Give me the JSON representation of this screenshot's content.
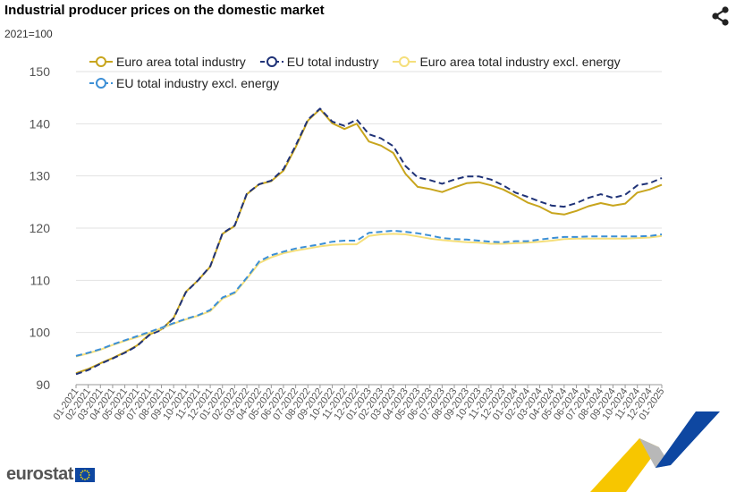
{
  "title": "Industrial producer prices on the domestic market",
  "subtitle": "2021=100",
  "logo_text": "eurostat",
  "share_icon": "share-icon",
  "chart_data": {
    "type": "line",
    "ylim": [
      90,
      150
    ],
    "yticks": [
      90,
      100,
      110,
      120,
      130,
      140,
      150
    ],
    "grid": true,
    "legend_position": "top",
    "categories": [
      "01-2021",
      "02-2021",
      "03-2021",
      "04-2021",
      "05-2021",
      "06-2021",
      "07-2021",
      "08-2021",
      "09-2021",
      "10-2021",
      "11-2021",
      "12-2021",
      "01-2022",
      "02-2022",
      "03-2022",
      "04-2022",
      "05-2022",
      "06-2022",
      "07-2022",
      "08-2022",
      "09-2022",
      "10-2022",
      "11-2022",
      "12-2022",
      "01-2023",
      "02-2023",
      "03-2023",
      "04-2023",
      "05-2023",
      "06-2023",
      "07-2023",
      "08-2023",
      "09-2023",
      "10-2023",
      "11-2023",
      "12-2023",
      "01-2024",
      "02-2024",
      "03-2024",
      "04-2024",
      "05-2024",
      "06-2024",
      "07-2024",
      "08-2024",
      "09-2024",
      "10-2024",
      "11-2024",
      "12-2024",
      "01-2025"
    ],
    "series": [
      {
        "name": "Euro area total industry",
        "color": "#c8a51d",
        "dash": false,
        "values": [
          92.2,
          93.0,
          94.1,
          95.1,
          96.2,
          97.5,
          99.6,
          100.6,
          102.8,
          107.8,
          110.0,
          112.6,
          118.9,
          120.4,
          126.5,
          128.4,
          129.0,
          131.0,
          135.5,
          140.6,
          142.8,
          140.1,
          139.0,
          140.0,
          136.6,
          135.8,
          134.4,
          130.4,
          127.9,
          127.5,
          126.9,
          127.8,
          128.6,
          128.8,
          128.2,
          127.4,
          126.2,
          124.9,
          124.1,
          122.9,
          122.6,
          123.3,
          124.2,
          124.8,
          124.3,
          124.7,
          126.8,
          127.4,
          128.3
        ]
      },
      {
        "name": "EU total industry",
        "color": "#1f3277",
        "dash": true,
        "values": [
          92.0,
          92.8,
          94.0,
          95.0,
          96.1,
          97.4,
          99.5,
          100.5,
          102.7,
          107.7,
          110.0,
          112.7,
          119.0,
          120.5,
          126.6,
          128.4,
          129.1,
          131.3,
          135.8,
          140.8,
          142.9,
          140.4,
          139.6,
          140.8,
          138.0,
          137.2,
          135.7,
          131.9,
          129.7,
          129.2,
          128.5,
          129.3,
          129.9,
          129.9,
          129.3,
          128.2,
          126.8,
          126.0,
          125.1,
          124.3,
          124.1,
          124.8,
          125.8,
          126.5,
          125.8,
          126.4,
          128.2,
          128.6,
          129.6
        ]
      },
      {
        "name": "Euro area total industry excl. energy",
        "color": "#f5df7b",
        "dash": false,
        "values": [
          95.4,
          96.0,
          96.7,
          97.6,
          98.4,
          99.1,
          99.9,
          100.8,
          101.7,
          102.5,
          103.2,
          104.1,
          106.5,
          107.5,
          110.3,
          113.3,
          114.4,
          115.2,
          115.7,
          116.1,
          116.5,
          116.8,
          116.9,
          116.9,
          118.5,
          118.8,
          118.9,
          118.8,
          118.4,
          118.0,
          117.7,
          117.5,
          117.3,
          117.2,
          117.0,
          117.0,
          117.1,
          117.2,
          117.4,
          117.6,
          117.9,
          118.0,
          118.0,
          118.0,
          118.0,
          118.0,
          118.1,
          118.2,
          118.5
        ]
      },
      {
        "name": "EU total industry excl. energy",
        "color": "#3c8fd6",
        "dash": true,
        "values": [
          95.5,
          96.1,
          96.8,
          97.7,
          98.5,
          99.3,
          100.1,
          100.9,
          101.8,
          102.6,
          103.3,
          104.3,
          106.7,
          107.7,
          110.5,
          113.6,
          114.8,
          115.5,
          116.1,
          116.5,
          116.9,
          117.4,
          117.6,
          117.6,
          119.1,
          119.3,
          119.5,
          119.3,
          119.0,
          118.6,
          118.1,
          117.9,
          117.8,
          117.6,
          117.4,
          117.3,
          117.5,
          117.5,
          117.8,
          118.1,
          118.3,
          118.3,
          118.4,
          118.4,
          118.4,
          118.4,
          118.4,
          118.5,
          118.8
        ]
      }
    ]
  }
}
